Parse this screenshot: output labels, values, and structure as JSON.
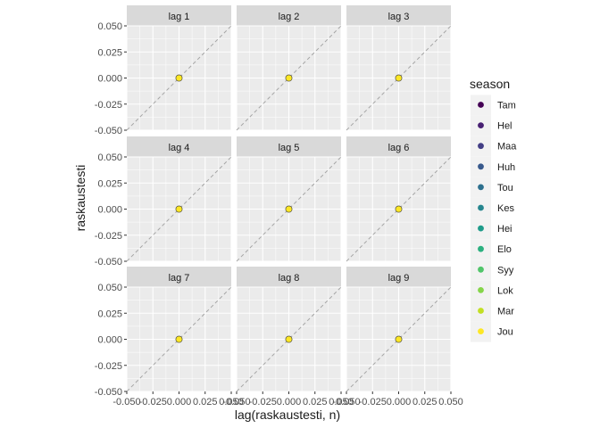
{
  "chart_data": {
    "type": "scatter",
    "xlabel": "lag(raskaustesti, n)",
    "ylabel": "raskaustesti",
    "xlim": [
      -0.05,
      0.05
    ],
    "ylim": [
      -0.05,
      0.05
    ],
    "x_ticks": [
      "-0.050",
      "-0.025",
      "0.000",
      "0.025",
      "0.050"
    ],
    "y_ticks": [
      "-0.050",
      "-0.025",
      "0.000",
      "0.025",
      "0.050"
    ],
    "grid": true,
    "reference_line": "y = x (dashed)",
    "facets": [
      {
        "label": "lag 1",
        "points": [
          {
            "x": 0,
            "y": 0,
            "season": "Jou"
          }
        ]
      },
      {
        "label": "lag 2",
        "points": [
          {
            "x": 0,
            "y": 0,
            "season": "Jou"
          }
        ]
      },
      {
        "label": "lag 3",
        "points": [
          {
            "x": 0,
            "y": 0,
            "season": "Jou"
          }
        ]
      },
      {
        "label": "lag 4",
        "points": [
          {
            "x": 0,
            "y": 0,
            "season": "Jou"
          }
        ]
      },
      {
        "label": "lag 5",
        "points": [
          {
            "x": 0,
            "y": 0,
            "season": "Jou"
          }
        ]
      },
      {
        "label": "lag 6",
        "points": [
          {
            "x": 0,
            "y": 0,
            "season": "Jou"
          }
        ]
      },
      {
        "label": "lag 7",
        "points": [
          {
            "x": 0,
            "y": 0,
            "season": "Jou"
          }
        ]
      },
      {
        "label": "lag 8",
        "points": [
          {
            "x": 0,
            "y": 0,
            "season": "Jou"
          }
        ]
      },
      {
        "label": "lag 9",
        "points": [
          {
            "x": 0,
            "y": 0,
            "season": "Jou"
          }
        ]
      }
    ],
    "legend": {
      "title": "season",
      "placement": "right",
      "items": [
        {
          "label": "Tam",
          "color": "#440154"
        },
        {
          "label": "Hel",
          "color": "#482173"
        },
        {
          "label": "Maa",
          "color": "#433E85"
        },
        {
          "label": "Huh",
          "color": "#38598C"
        },
        {
          "label": "Tou",
          "color": "#2D708E"
        },
        {
          "label": "Kes",
          "color": "#25858E"
        },
        {
          "label": "Hei",
          "color": "#1E9B8A"
        },
        {
          "label": "Elo",
          "color": "#2BB07F"
        },
        {
          "label": "Syy",
          "color": "#51C56A"
        },
        {
          "label": "Lok",
          "color": "#85D54A"
        },
        {
          "label": "Mar",
          "color": "#C2DF23"
        },
        {
          "label": "Jou",
          "color": "#FDE725"
        }
      ]
    }
  }
}
